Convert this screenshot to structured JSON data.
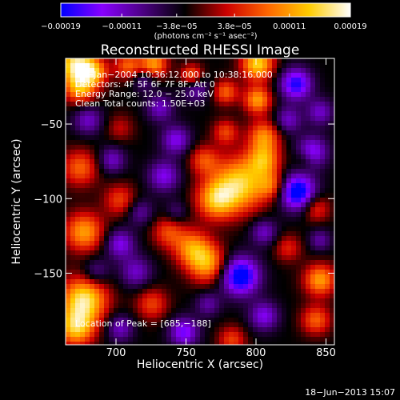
{
  "chart_data": {
    "type": "heatmap",
    "title": "Reconstructed RHESSI Image",
    "xlabel": "Heliocentric X (arcsec)",
    "ylabel": "Heliocentric Y (arcsec)",
    "xlim": [
      664,
      856
    ],
    "ylim": [
      -198,
      -6
    ],
    "x_ticks": [
      {
        "value": 700,
        "label": "700"
      },
      {
        "value": 750,
        "label": "750"
      },
      {
        "value": 800,
        "label": "800"
      },
      {
        "value": 850,
        "label": "850"
      }
    ],
    "y_ticks": [
      {
        "value": -50,
        "label": "−50"
      },
      {
        "value": -100,
        "label": "−100"
      },
      {
        "value": -150,
        "label": "−150"
      }
    ],
    "colorbar": {
      "range": [
        -0.00019,
        0.00019
      ],
      "ticks": [
        {
          "value": -0.00019,
          "label": "−0.00019"
        },
        {
          "value": -0.00011,
          "label": "−0.00011"
        },
        {
          "value": -3.8e-05,
          "label": "−3.8e−05"
        },
        {
          "value": 3.8e-05,
          "label": "3.8e−05"
        },
        {
          "value": 0.00011,
          "label": "0.00011"
        },
        {
          "value": 0.00019,
          "label": "0.00019"
        }
      ],
      "unit_label": "(photons cm⁻² s⁻¹ asec⁻²)",
      "colors": [
        "#0000ff",
        "#8800ff",
        "#4b0082",
        "#000000",
        "#cc0000",
        "#ff6600",
        "#ffcc00",
        "#ffffff"
      ]
    },
    "annotations": [
      "11−Jan−2004 10:36:12.000 to 10:38:16.000",
      "Detectors: 4F 5F 6F 7F 8F, Att 0",
      "Energy Range: 12.0 − 25.0 keV",
      "Clean     Total counts: 1.50E+03"
    ],
    "peak_label": "Location of Peak = [685,−188]",
    "footer": "18−Jun−2013 15:07",
    "grid": false
  }
}
